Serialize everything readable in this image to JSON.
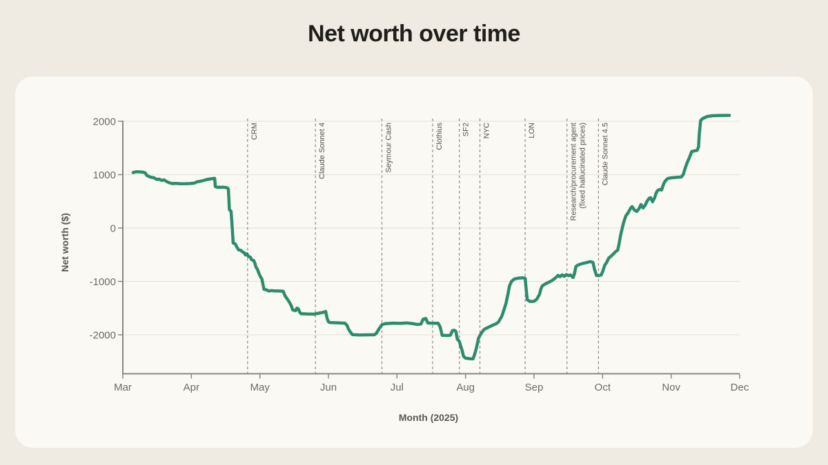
{
  "page": {
    "title": "Net worth over time"
  },
  "chart_data": {
    "type": "line",
    "title": "Net worth over time",
    "xlabel": "Month (2025)",
    "ylabel": "Net worth ($)",
    "x_unit": "months since Mar 1, 2025 (0 = Mar, 9 = Dec)",
    "x_ticks": [
      "Mar",
      "Apr",
      "May",
      "Jun",
      "Jul",
      "Aug",
      "Sep",
      "Oct",
      "Nov",
      "Dec"
    ],
    "y_ticks": [
      2000,
      1000,
      0,
      -1000,
      -2000
    ],
    "xlim": [
      0,
      9
    ],
    "ylim": [
      -2700,
      2300
    ],
    "grid": "horizontal-only",
    "legend": "none",
    "line_color": "#2e8c6e",
    "event_line_color": "#8f8c84",
    "events": [
      {
        "x": 1.82,
        "label": "CRM"
      },
      {
        "x": 2.81,
        "label": "Claude Sonnet 4"
      },
      {
        "x": 3.78,
        "label": "Seymour Cash"
      },
      {
        "x": 4.52,
        "label": "Clothius"
      },
      {
        "x": 4.91,
        "label": "SF2"
      },
      {
        "x": 5.21,
        "label": "NYC"
      },
      {
        "x": 5.87,
        "label": "LON"
      },
      {
        "x": 6.48,
        "label": "Research/procurement agent",
        "label2": "(fixed hallucinated prices)"
      },
      {
        "x": 6.94,
        "label": "Claude Sonnet 4.5"
      }
    ],
    "series": [
      {
        "name": "Net worth",
        "points": [
          [
            0.15,
            1040
          ],
          [
            0.2,
            1055
          ],
          [
            0.26,
            1050
          ],
          [
            0.3,
            1045
          ],
          [
            0.33,
            1030
          ],
          [
            0.35,
            985
          ],
          [
            0.4,
            955
          ],
          [
            0.45,
            942
          ],
          [
            0.5,
            908
          ],
          [
            0.53,
            916
          ],
          [
            0.57,
            890
          ],
          [
            0.6,
            903
          ],
          [
            0.63,
            877
          ],
          [
            0.67,
            852
          ],
          [
            0.72,
            832
          ],
          [
            0.78,
            836
          ],
          [
            0.84,
            828
          ],
          [
            0.9,
            830
          ],
          [
            0.97,
            832
          ],
          [
            1.04,
            840
          ],
          [
            1.08,
            865
          ],
          [
            1.14,
            878
          ],
          [
            1.21,
            903
          ],
          [
            1.26,
            916
          ],
          [
            1.32,
            928
          ],
          [
            1.34,
            930
          ],
          [
            1.35,
            775
          ],
          [
            1.38,
            762
          ],
          [
            1.46,
            765
          ],
          [
            1.51,
            758
          ],
          [
            1.53,
            748
          ],
          [
            1.54,
            723
          ],
          [
            1.555,
            340
          ],
          [
            1.58,
            315
          ],
          [
            1.6,
            -60
          ],
          [
            1.61,
            -280
          ],
          [
            1.64,
            -297
          ],
          [
            1.66,
            -348
          ],
          [
            1.69,
            -410
          ],
          [
            1.72,
            -415
          ],
          [
            1.74,
            -440
          ],
          [
            1.77,
            -465
          ],
          [
            1.79,
            -505
          ],
          [
            1.81,
            -480
          ],
          [
            1.83,
            -530
          ],
          [
            1.86,
            -545
          ],
          [
            1.88,
            -595
          ],
          [
            1.91,
            -608
          ],
          [
            1.93,
            -670
          ],
          [
            1.94,
            -725
          ],
          [
            1.96,
            -762
          ],
          [
            1.98,
            -828
          ],
          [
            1.99,
            -866
          ],
          [
            2.01,
            -916
          ],
          [
            2.03,
            -956
          ],
          [
            2.04,
            -1020
          ],
          [
            2.06,
            -1148
          ],
          [
            2.09,
            -1156
          ],
          [
            2.13,
            -1180
          ],
          [
            2.17,
            -1172
          ],
          [
            2.21,
            -1178
          ],
          [
            2.27,
            -1180
          ],
          [
            2.34,
            -1185
          ],
          [
            2.37,
            -1277
          ],
          [
            2.4,
            -1330
          ],
          [
            2.42,
            -1370
          ],
          [
            2.44,
            -1410
          ],
          [
            2.46,
            -1465
          ],
          [
            2.48,
            -1535
          ],
          [
            2.52,
            -1548
          ],
          [
            2.54,
            -1500
          ],
          [
            2.56,
            -1512
          ],
          [
            2.58,
            -1575
          ],
          [
            2.6,
            -1605
          ],
          [
            2.69,
            -1610
          ],
          [
            2.79,
            -1613
          ],
          [
            2.84,
            -1600
          ],
          [
            2.92,
            -1580
          ],
          [
            2.96,
            -1562
          ],
          [
            2.98,
            -1690
          ],
          [
            3.0,
            -1758
          ],
          [
            3.03,
            -1772
          ],
          [
            3.14,
            -1776
          ],
          [
            3.24,
            -1782
          ],
          [
            3.27,
            -1820
          ],
          [
            3.29,
            -1885
          ],
          [
            3.32,
            -1950
          ],
          [
            3.35,
            -1997
          ],
          [
            3.45,
            -2002
          ],
          [
            3.59,
            -2000
          ],
          [
            3.67,
            -2000
          ],
          [
            3.7,
            -1970
          ],
          [
            3.74,
            -1885
          ],
          [
            3.78,
            -1812
          ],
          [
            3.83,
            -1790
          ],
          [
            3.95,
            -1782
          ],
          [
            4.05,
            -1786
          ],
          [
            4.15,
            -1778
          ],
          [
            4.24,
            -1792
          ],
          [
            4.3,
            -1806
          ],
          [
            4.35,
            -1798
          ],
          [
            4.38,
            -1708
          ],
          [
            4.42,
            -1694
          ],
          [
            4.45,
            -1780
          ],
          [
            4.53,
            -1784
          ],
          [
            4.6,
            -1782
          ],
          [
            4.63,
            -1852
          ],
          [
            4.66,
            -2010
          ],
          [
            4.74,
            -2013
          ],
          [
            4.78,
            -2008
          ],
          [
            4.81,
            -1920
          ],
          [
            4.84,
            -1916
          ],
          [
            4.86,
            -1938
          ],
          [
            4.88,
            -2080
          ],
          [
            4.91,
            -2122
          ],
          [
            4.93,
            -2212
          ],
          [
            4.95,
            -2292
          ],
          [
            4.97,
            -2400
          ],
          [
            5.0,
            -2437
          ],
          [
            5.06,
            -2448
          ],
          [
            5.11,
            -2450
          ],
          [
            5.13,
            -2376
          ],
          [
            5.15,
            -2290
          ],
          [
            5.17,
            -2180
          ],
          [
            5.19,
            -2062
          ],
          [
            5.22,
            -1992
          ],
          [
            5.25,
            -1932
          ],
          [
            5.28,
            -1892
          ],
          [
            5.33,
            -1862
          ],
          [
            5.39,
            -1824
          ],
          [
            5.44,
            -1796
          ],
          [
            5.48,
            -1762
          ],
          [
            5.53,
            -1652
          ],
          [
            5.56,
            -1536
          ],
          [
            5.59,
            -1412
          ],
          [
            5.62,
            -1232
          ],
          [
            5.64,
            -1092
          ],
          [
            5.67,
            -1002
          ],
          [
            5.71,
            -956
          ],
          [
            5.76,
            -941
          ],
          [
            5.84,
            -932
          ],
          [
            5.87,
            -942
          ],
          [
            5.885,
            -1150
          ],
          [
            5.9,
            -1342
          ],
          [
            5.94,
            -1376
          ],
          [
            6.0,
            -1373
          ],
          [
            6.04,
            -1332
          ],
          [
            6.08,
            -1242
          ],
          [
            6.1,
            -1142
          ],
          [
            6.12,
            -1082
          ],
          [
            6.17,
            -1042
          ],
          [
            6.22,
            -1012
          ],
          [
            6.26,
            -986
          ],
          [
            6.3,
            -946
          ],
          [
            6.33,
            -913
          ],
          [
            6.35,
            -886
          ],
          [
            6.38,
            -911
          ],
          [
            6.41,
            -876
          ],
          [
            6.44,
            -906
          ],
          [
            6.47,
            -871
          ],
          [
            6.5,
            -893
          ],
          [
            6.53,
            -879
          ],
          [
            6.57,
            -926
          ],
          [
            6.59,
            -851
          ],
          [
            6.61,
            -723
          ],
          [
            6.64,
            -693
          ],
          [
            6.69,
            -671
          ],
          [
            6.76,
            -649
          ],
          [
            6.81,
            -631
          ],
          [
            6.84,
            -633
          ],
          [
            6.86,
            -646
          ],
          [
            6.88,
            -762
          ],
          [
            6.91,
            -889
          ],
          [
            6.95,
            -891
          ],
          [
            6.98,
            -879
          ],
          [
            7.0,
            -821
          ],
          [
            7.03,
            -701
          ],
          [
            7.06,
            -641
          ],
          [
            7.09,
            -561
          ],
          [
            7.13,
            -521
          ],
          [
            7.16,
            -481
          ],
          [
            7.19,
            -441
          ],
          [
            7.22,
            -414
          ],
          [
            7.24,
            -300
          ],
          [
            7.26,
            -150
          ],
          [
            7.29,
            15
          ],
          [
            7.31,
            115
          ],
          [
            7.34,
            230
          ],
          [
            7.37,
            280
          ],
          [
            7.41,
            375
          ],
          [
            7.43,
            400
          ],
          [
            7.47,
            330
          ],
          [
            7.5,
            311
          ],
          [
            7.53,
            361
          ],
          [
            7.56,
            440
          ],
          [
            7.59,
            376
          ],
          [
            7.62,
            425
          ],
          [
            7.65,
            505
          ],
          [
            7.68,
            560
          ],
          [
            7.7,
            568
          ],
          [
            7.73,
            491
          ],
          [
            7.76,
            568
          ],
          [
            7.78,
            650
          ],
          [
            7.8,
            700
          ],
          [
            7.83,
            723
          ],
          [
            7.86,
            711
          ],
          [
            7.88,
            787
          ],
          [
            7.9,
            852
          ],
          [
            7.92,
            890
          ],
          [
            7.95,
            926
          ],
          [
            8.0,
            941
          ],
          [
            8.07,
            948
          ],
          [
            8.15,
            956
          ],
          [
            8.18,
            1010
          ],
          [
            8.2,
            1100
          ],
          [
            8.23,
            1213
          ],
          [
            8.27,
            1330
          ],
          [
            8.3,
            1433
          ],
          [
            8.38,
            1456
          ],
          [
            8.4,
            1520
          ],
          [
            8.41,
            1750
          ],
          [
            8.43,
            2013
          ],
          [
            8.46,
            2052
          ],
          [
            8.53,
            2090
          ],
          [
            8.6,
            2103
          ],
          [
            8.7,
            2108
          ],
          [
            8.85,
            2110
          ]
        ]
      }
    ]
  }
}
